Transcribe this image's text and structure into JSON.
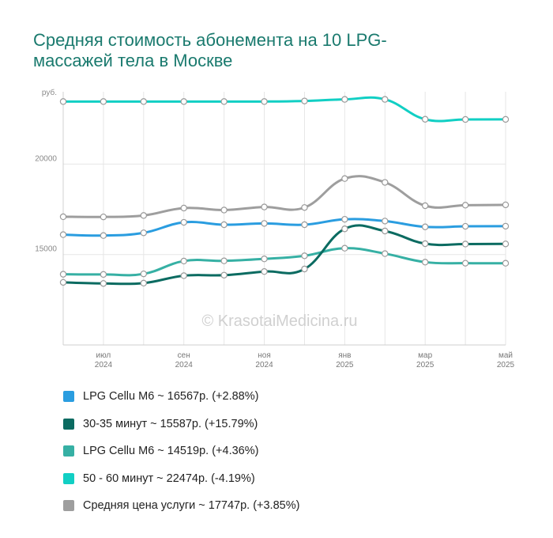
{
  "title": "Средняя стоимость абонемента на 10 LPG-массажей тела в Москве",
  "watermark": "© KrasotaiMedicina.ru",
  "chart_data": {
    "type": "line",
    "ylabel": "руб.",
    "ylim": [
      10000,
      24000
    ],
    "yticks": [
      {
        "value": 20000,
        "label": "20000"
      },
      {
        "value": 15000,
        "label": "15000"
      }
    ],
    "x_count": 12,
    "x_ticks": [
      {
        "index": 1,
        "line1": "июл",
        "line2": "2024"
      },
      {
        "index": 3,
        "line1": "сен",
        "line2": "2024"
      },
      {
        "index": 5,
        "line1": "ноя",
        "line2": "2024"
      },
      {
        "index": 7,
        "line1": "янв",
        "line2": "2025"
      },
      {
        "index": 9,
        "line1": "мар",
        "line2": "2025"
      },
      {
        "index": 11,
        "line1": "май",
        "line2": "2025"
      }
    ],
    "grid": true,
    "legend_position": "bottom",
    "series": [
      {
        "name": "LPG Cellu M6 ~ 16567р. (+2.88%)",
        "color": "#2a9de0",
        "values": [
          16100,
          16050,
          16200,
          16780,
          16650,
          16720,
          16650,
          16950,
          16850,
          16530,
          16560,
          16567
        ]
      },
      {
        "name": "30-35 минут ~ 15587р. (+15.79%)",
        "color": "#0b6b61",
        "values": [
          13460,
          13400,
          13420,
          13830,
          13860,
          14060,
          14200,
          16420,
          16300,
          15600,
          15580,
          15587
        ]
      },
      {
        "name": "LPG Cellu M6 ~ 14519р. (+4.36%)",
        "color": "#36b0a4",
        "values": [
          13910,
          13900,
          13930,
          14640,
          14650,
          14760,
          14930,
          15350,
          15050,
          14580,
          14520,
          14519
        ]
      },
      {
        "name": "50 - 60 минут ~ 22474р. (-4.19%)",
        "color": "#11cfc4",
        "values": [
          23460,
          23460,
          23460,
          23460,
          23460,
          23460,
          23490,
          23580,
          23580,
          22480,
          22470,
          22474
        ]
      },
      {
        "name": "Средняя цена услуги ~ 17747р. (+3.85%)",
        "color": "#9e9e9e",
        "values": [
          17090,
          17080,
          17160,
          17570,
          17460,
          17630,
          17600,
          19200,
          18990,
          17700,
          17730,
          17747
        ]
      }
    ]
  }
}
